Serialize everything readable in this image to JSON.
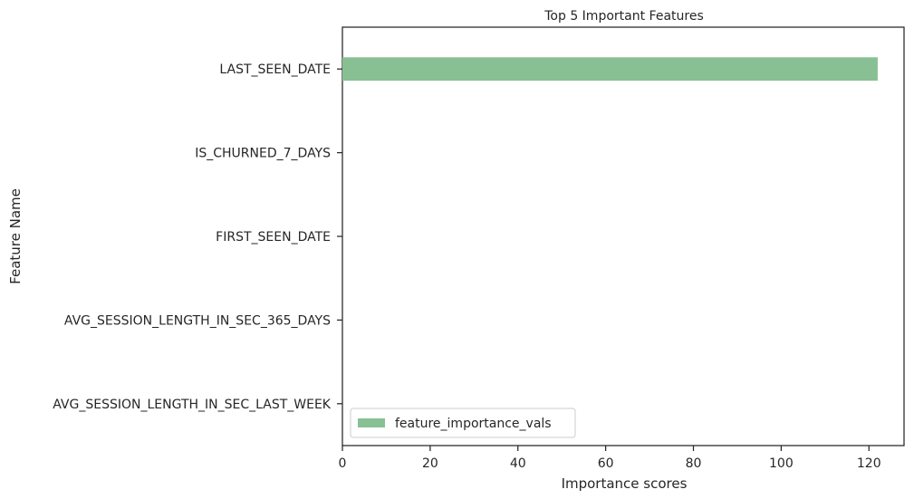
{
  "chart_data": {
    "type": "bar",
    "orientation": "horizontal",
    "title": "Top 5 Important Features",
    "xlabel": "Importance scores",
    "ylabel": "Feature Name",
    "categories": [
      "LAST_SEEN_DATE",
      "IS_CHURNED_7_DAYS",
      "FIRST_SEEN_DATE",
      "AVG_SESSION_LENGTH_IN_SEC_365_DAYS",
      "AVG_SESSION_LENGTH_IN_SEC_LAST_WEEK"
    ],
    "series": [
      {
        "name": "feature_importance_vals",
        "values": [
          122,
          0,
          0,
          0,
          0
        ],
        "color": "#88c093"
      }
    ],
    "xlim": [
      0,
      128
    ],
    "xticks": [
      0,
      20,
      40,
      60,
      80,
      100,
      120
    ],
    "xtick_labels": [
      "0",
      "20",
      "40",
      "60",
      "80",
      "100",
      "120"
    ],
    "grid": false,
    "legend_position": "lower-left"
  }
}
